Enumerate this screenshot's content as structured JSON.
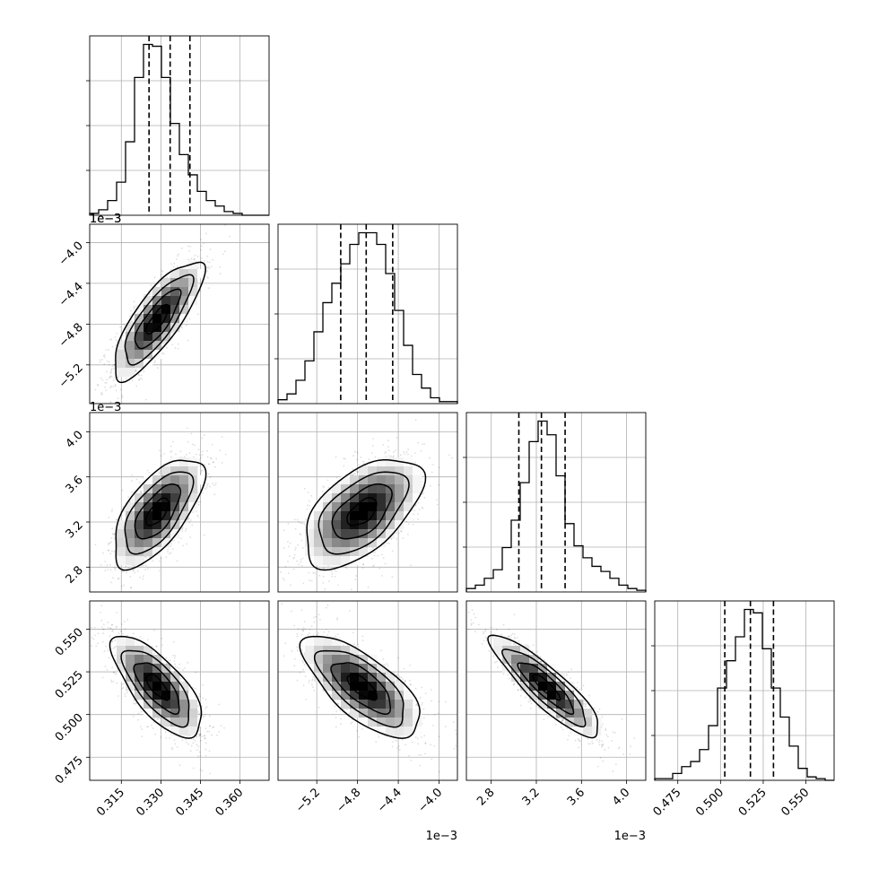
{
  "chart_data": {
    "type": "corner",
    "grid": true,
    "parameters": [
      {
        "label": "",
        "range": [
          0.303,
          0.371
        ],
        "ticks": [
          0.315,
          0.33,
          0.345,
          0.36
        ],
        "tick_labels": [
          "0.315",
          "0.330",
          "0.345",
          "0.360"
        ],
        "offset_text": "",
        "quantiles": [
          0.3255,
          0.3335,
          0.341
        ],
        "histogram": [
          1,
          3,
          8,
          18,
          40,
          75,
          93,
          92,
          75,
          50,
          33,
          22,
          13,
          8,
          5,
          2,
          1,
          0,
          0,
          0
        ]
      },
      {
        "label": "",
        "range": [
          -5.58,
          -3.82
        ],
        "ticks": [
          -5.2,
          -4.8,
          -4.4,
          -4.0
        ],
        "tick_labels": [
          "−5.2",
          "−4.8",
          "−4.4",
          "−4.0"
        ],
        "offset_text": "1e−3",
        "quantiles": [
          -4.965,
          -4.715,
          -4.455
        ],
        "histogram": [
          2,
          5,
          12,
          22,
          37,
          52,
          62,
          72,
          82,
          88,
          88,
          82,
          67,
          48,
          30,
          15,
          8,
          3,
          1,
          1
        ]
      },
      {
        "label": "",
        "range": [
          2.58,
          4.17
        ],
        "ticks": [
          2.8,
          3.2,
          3.6,
          4.0
        ],
        "tick_labels": [
          "2.8",
          "3.2",
          "3.6",
          "4.0"
        ],
        "offset_text": "1e−3",
        "quantiles": [
          3.045,
          3.245,
          3.455
        ],
        "histogram": [
          2,
          4,
          8,
          13,
          26,
          42,
          64,
          88,
          100,
          92,
          68,
          40,
          27,
          20,
          15,
          12,
          8,
          4,
          2,
          1
        ]
      },
      {
        "label": "",
        "range": [
          0.4615,
          0.5665
        ],
        "ticks": [
          0.475,
          0.5,
          0.525,
          0.55
        ],
        "tick_labels": [
          "0.475",
          "0.500",
          "0.525",
          "0.550"
        ],
        "offset_text": "",
        "quantiles": [
          0.5025,
          0.5175,
          0.531
        ],
        "histogram": [
          1,
          1,
          4,
          8,
          11,
          18,
          32,
          54,
          70,
          84,
          100,
          98,
          77,
          54,
          37,
          20,
          7,
          2,
          1,
          0
        ]
      }
    ],
    "y_ticks": {
      "1": {
        "ticks": [
          -5.2,
          -4.8,
          -4.4,
          -4.0
        ],
        "tick_labels": [
          "−5.2",
          "−4.8",
          "−4.4",
          "−4.0"
        ],
        "offset_text": "1e−3"
      },
      "2": {
        "ticks": [
          2.8,
          3.2,
          3.6,
          4.0
        ],
        "tick_labels": [
          "2.8",
          "3.2",
          "3.6",
          "4.0"
        ],
        "offset_text": "1e−3"
      },
      "3": {
        "ticks": [
          0.475,
          0.5,
          0.525,
          0.55
        ],
        "tick_labels": [
          "0.475",
          "0.500",
          "0.525",
          "0.550"
        ],
        "offset_text": ""
      }
    },
    "extra_offset_labels": [
      {
        "panel": "0,0",
        "text": "1e−3"
      }
    ],
    "correlations": {
      "1,0": 0.8,
      "2,0": 0.65,
      "2,1": 0.55,
      "3,0": -0.72,
      "3,1": -0.7,
      "3,2": -0.88
    },
    "contour_levels_sigma": [
      0.5,
      1.0,
      1.5,
      2.0
    ]
  }
}
